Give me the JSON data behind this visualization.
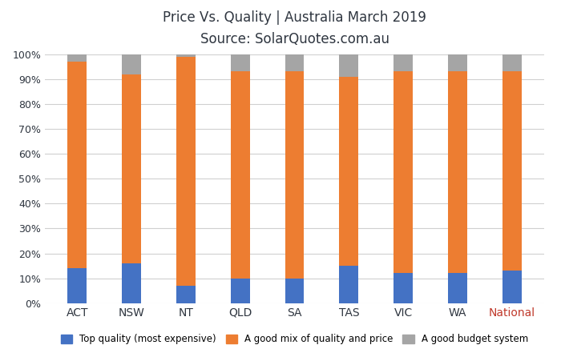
{
  "categories": [
    "ACT",
    "NSW",
    "NT",
    "QLD",
    "SA",
    "TAS",
    "VIC",
    "WA",
    "National"
  ],
  "top_quality": [
    14,
    16,
    7,
    10,
    10,
    15,
    12,
    12,
    13
  ],
  "good_mix": [
    83,
    76,
    92,
    83,
    83,
    76,
    81,
    81,
    80
  ],
  "budget": [
    3,
    8,
    1,
    7,
    7,
    9,
    7,
    7,
    7
  ],
  "colors": {
    "top_quality": "#4472C4",
    "good_mix": "#ED7D31",
    "budget": "#A5A5A5"
  },
  "title_line1": "Price Vs. Quality | Australia March 2019",
  "title_line2": "Source: SolarQuotes.com.au",
  "legend_labels": [
    "Top quality (most expensive)",
    "A good mix of quality and price",
    "A good budget system"
  ],
  "ylim": [
    0,
    100
  ],
  "background_color": "#FFFFFF",
  "grid_color": "#D0D0D0",
  "title_color": "#2F3640",
  "national_color": "#C0392B",
  "bar_width": 0.35
}
